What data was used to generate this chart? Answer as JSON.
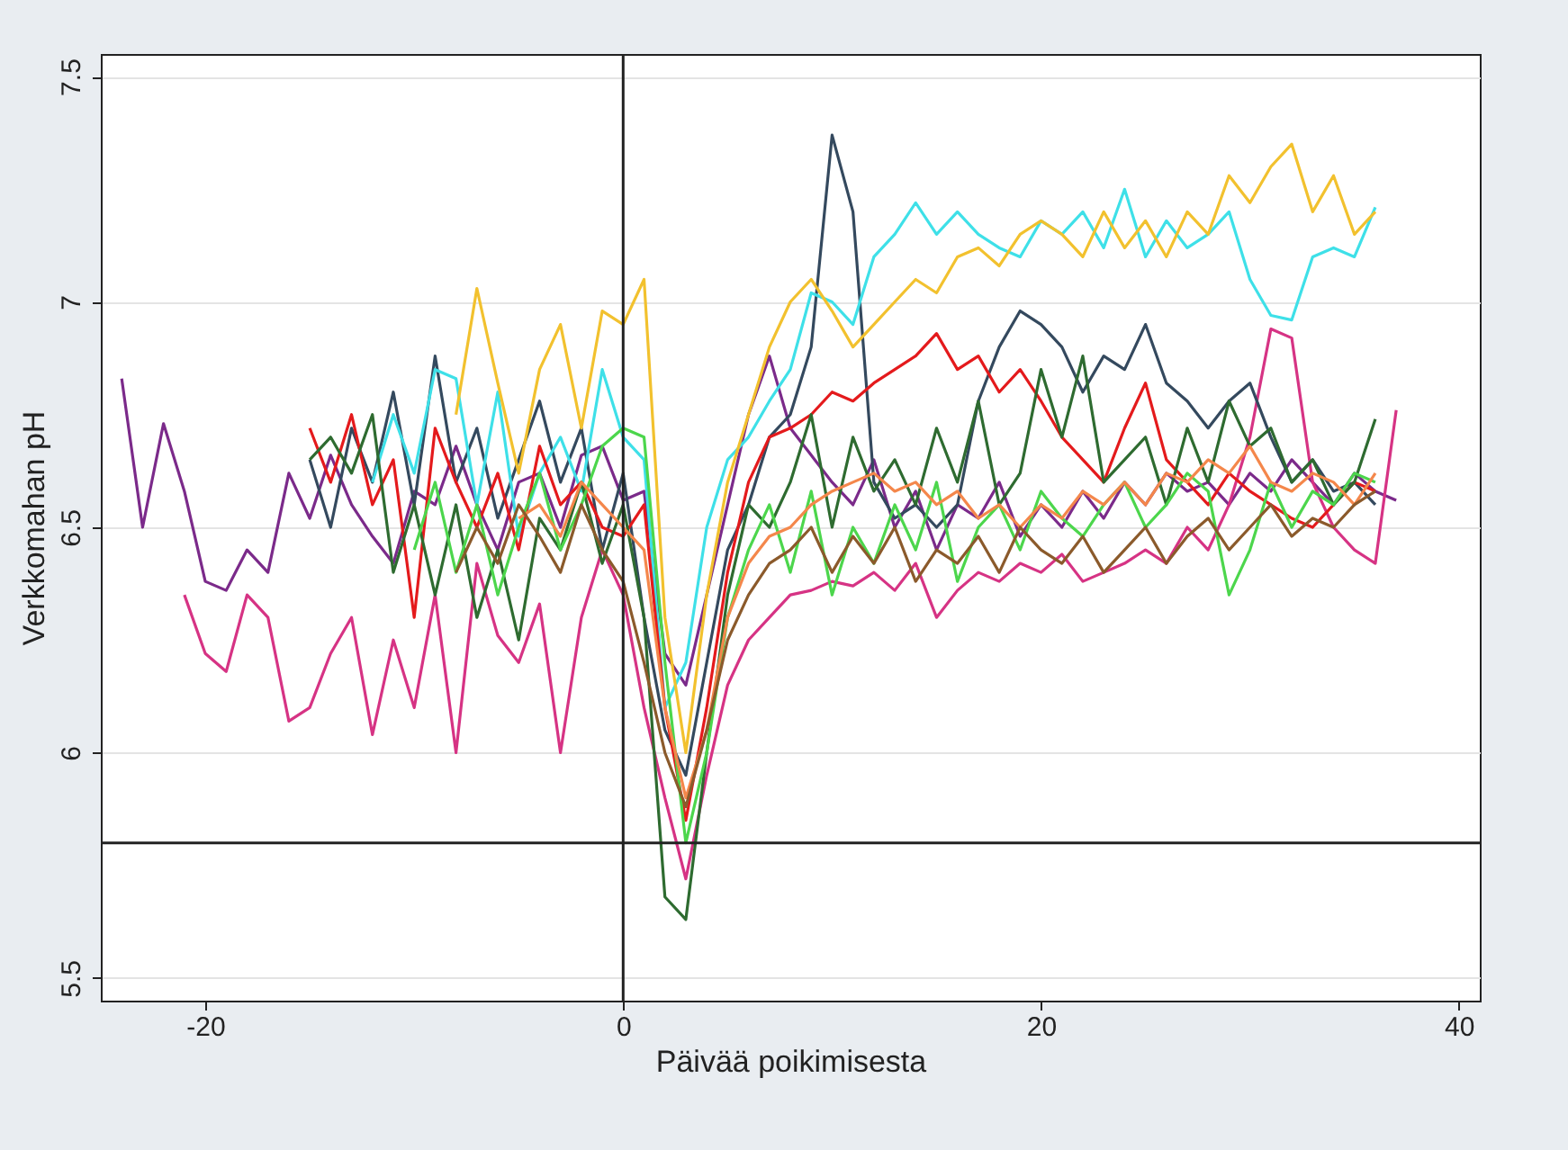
{
  "chart_data": {
    "type": "line",
    "xlabel": "Päivää poikimisesta",
    "ylabel": "Verkkomahan pH",
    "x": [
      -24,
      -23,
      -22,
      -21,
      -20,
      -19,
      -18,
      -17,
      -16,
      -15,
      -14,
      -13,
      -12,
      -11,
      -10,
      -9,
      -8,
      -7,
      -6,
      -5,
      -4,
      -3,
      -2,
      -1,
      0,
      1,
      2,
      3,
      4,
      5,
      6,
      7,
      8,
      9,
      10,
      11,
      12,
      13,
      14,
      15,
      16,
      17,
      18,
      19,
      20,
      21,
      22,
      23,
      24,
      25,
      26,
      27,
      28,
      29,
      30,
      31,
      32,
      33,
      34,
      35,
      36,
      37
    ],
    "xlim": [
      -25,
      41
    ],
    "xticks": [
      -20,
      0,
      20,
      40
    ],
    "ylim": [
      5.45,
      7.55
    ],
    "yticks": [
      5.5,
      6,
      6.5,
      7,
      7.5
    ],
    "grid": "y",
    "line_style": "solid",
    "ref_lines": [
      {
        "axis": "x",
        "value": 0,
        "color": "#222222"
      },
      {
        "axis": "y",
        "value": 5.8,
        "color": "#222222"
      }
    ],
    "series": [
      {
        "color": "#7b2a8a",
        "values": [
          6.83,
          6.5,
          6.73,
          6.58,
          6.38,
          6.36,
          6.45,
          6.4,
          6.62,
          6.52,
          6.66,
          6.55,
          6.48,
          6.42,
          6.58,
          6.55,
          6.68,
          6.55,
          6.45,
          6.6,
          6.62,
          6.5,
          6.66,
          6.68,
          6.56,
          6.58,
          6.22,
          6.15,
          6.35,
          6.55,
          6.75,
          6.88,
          6.72,
          6.66,
          6.6,
          6.55,
          6.65,
          6.5,
          6.58,
          6.45,
          6.55,
          6.52,
          6.6,
          6.48,
          6.55,
          6.5,
          6.58,
          6.52,
          6.6,
          6.55,
          6.62,
          6.58,
          6.6,
          6.55,
          6.62,
          6.58,
          6.65,
          6.6,
          6.55,
          6.62,
          6.58,
          6.56
        ]
      },
      {
        "color": "#d63384",
        "values": [
          null,
          null,
          null,
          6.35,
          6.22,
          6.18,
          6.35,
          6.3,
          6.07,
          6.1,
          6.22,
          6.3,
          6.04,
          6.25,
          6.1,
          6.35,
          6.0,
          6.42,
          6.26,
          6.2,
          6.33,
          6.0,
          6.3,
          6.45,
          6.35,
          6.1,
          5.9,
          5.72,
          5.95,
          6.15,
          6.25,
          6.3,
          6.35,
          6.36,
          6.38,
          6.37,
          6.4,
          6.36,
          6.42,
          6.3,
          6.36,
          6.4,
          6.38,
          6.42,
          6.4,
          6.44,
          6.38,
          6.4,
          6.42,
          6.45,
          6.42,
          6.5,
          6.45,
          6.55,
          6.7,
          6.94,
          6.92,
          6.6,
          6.5,
          6.45,
          6.42,
          6.76
        ]
      },
      {
        "color": "#34495e",
        "values": [
          null,
          null,
          null,
          null,
          null,
          null,
          null,
          null,
          null,
          6.65,
          6.5,
          6.72,
          6.6,
          6.8,
          6.55,
          6.88,
          6.6,
          6.72,
          6.52,
          6.65,
          6.78,
          6.6,
          6.72,
          6.45,
          6.62,
          6.3,
          6.05,
          5.95,
          6.2,
          6.45,
          6.55,
          6.7,
          6.75,
          6.9,
          7.37,
          7.2,
          6.6,
          6.52,
          6.55,
          6.5,
          6.55,
          6.78,
          6.9,
          6.98,
          6.95,
          6.9,
          6.8,
          6.88,
          6.85,
          6.95,
          6.82,
          6.78,
          6.72,
          6.78,
          6.82,
          6.7,
          6.6,
          6.65,
          6.58,
          6.6,
          6.55,
          null
        ]
      },
      {
        "color": "#3ee0e8",
        "values": [
          null,
          null,
          null,
          null,
          null,
          null,
          null,
          null,
          null,
          null,
          null,
          null,
          6.6,
          6.75,
          6.62,
          6.85,
          6.83,
          6.55,
          6.8,
          6.48,
          6.62,
          6.7,
          6.58,
          6.85,
          6.7,
          6.65,
          6.1,
          6.2,
          6.5,
          6.65,
          6.7,
          6.78,
          6.85,
          7.02,
          7.0,
          6.95,
          7.1,
          7.15,
          7.22,
          7.15,
          7.2,
          7.15,
          7.12,
          7.1,
          7.18,
          7.15,
          7.2,
          7.12,
          7.25,
          7.1,
          7.18,
          7.12,
          7.15,
          7.2,
          7.05,
          6.97,
          6.96,
          7.1,
          7.12,
          7.1,
          7.21,
          null
        ]
      },
      {
        "color": "#f2c12e",
        "values": [
          null,
          null,
          null,
          null,
          null,
          null,
          null,
          null,
          null,
          null,
          null,
          null,
          null,
          null,
          null,
          null,
          6.75,
          7.03,
          6.82,
          6.62,
          6.85,
          6.95,
          6.72,
          6.98,
          6.95,
          7.05,
          6.3,
          6.0,
          6.35,
          6.6,
          6.75,
          6.9,
          7.0,
          7.05,
          6.98,
          6.9,
          6.95,
          7.0,
          7.05,
          7.02,
          7.1,
          7.12,
          7.08,
          7.15,
          7.18,
          7.15,
          7.1,
          7.2,
          7.12,
          7.18,
          7.1,
          7.2,
          7.15,
          7.28,
          7.22,
          7.3,
          7.35,
          7.2,
          7.28,
          7.15,
          7.2,
          null
        ]
      },
      {
        "color": "#e41a1c",
        "values": [
          null,
          null,
          null,
          null,
          null,
          null,
          null,
          null,
          null,
          6.72,
          6.6,
          6.75,
          6.55,
          6.65,
          6.3,
          6.72,
          6.6,
          6.5,
          6.62,
          6.45,
          6.68,
          6.55,
          6.6,
          6.5,
          6.48,
          6.55,
          6.1,
          5.85,
          6.1,
          6.4,
          6.6,
          6.7,
          6.72,
          6.75,
          6.8,
          6.78,
          6.82,
          6.85,
          6.88,
          6.93,
          6.85,
          6.88,
          6.8,
          6.85,
          6.78,
          6.7,
          6.65,
          6.6,
          6.72,
          6.82,
          6.65,
          6.6,
          6.55,
          6.62,
          6.58,
          6.55,
          6.52,
          6.5,
          6.55,
          6.6,
          6.58,
          null
        ]
      },
      {
        "color": "#2e6b30",
        "values": [
          null,
          null,
          null,
          null,
          null,
          null,
          null,
          null,
          null,
          6.65,
          6.7,
          6.62,
          6.75,
          6.4,
          6.55,
          6.35,
          6.55,
          6.3,
          6.45,
          6.25,
          6.52,
          6.45,
          6.6,
          6.42,
          6.55,
          6.3,
          5.68,
          5.63,
          6.0,
          6.35,
          6.55,
          6.5,
          6.6,
          6.75,
          6.5,
          6.7,
          6.58,
          6.65,
          6.55,
          6.72,
          6.6,
          6.78,
          6.55,
          6.62,
          6.85,
          6.7,
          6.88,
          6.6,
          6.65,
          6.7,
          6.55,
          6.72,
          6.6,
          6.78,
          6.68,
          6.72,
          6.6,
          6.65,
          6.55,
          6.6,
          6.74,
          null
        ]
      },
      {
        "color": "#4cd64c",
        "values": [
          null,
          null,
          null,
          null,
          null,
          null,
          null,
          null,
          null,
          null,
          null,
          null,
          null,
          null,
          6.45,
          6.6,
          6.4,
          6.55,
          6.35,
          6.5,
          6.62,
          6.45,
          6.55,
          6.68,
          6.72,
          6.7,
          6.2,
          5.8,
          6.0,
          6.3,
          6.45,
          6.55,
          6.4,
          6.58,
          6.35,
          6.5,
          6.42,
          6.55,
          6.45,
          6.6,
          6.38,
          6.5,
          6.55,
          6.45,
          6.58,
          6.52,
          6.48,
          6.55,
          6.6,
          6.5,
          6.55,
          6.62,
          6.58,
          6.35,
          6.45,
          6.6,
          6.5,
          6.58,
          6.55,
          6.62,
          6.6,
          null
        ]
      },
      {
        "color": "#f4874b",
        "values": [
          null,
          null,
          null,
          null,
          null,
          null,
          null,
          null,
          null,
          null,
          null,
          null,
          null,
          null,
          null,
          null,
          null,
          null,
          null,
          6.52,
          6.55,
          6.48,
          6.6,
          6.55,
          6.5,
          6.45,
          6.1,
          5.9,
          6.05,
          6.3,
          6.42,
          6.48,
          6.5,
          6.55,
          6.58,
          6.6,
          6.62,
          6.58,
          6.6,
          6.55,
          6.58,
          6.52,
          6.55,
          6.5,
          6.55,
          6.52,
          6.58,
          6.55,
          6.6,
          6.55,
          6.62,
          6.6,
          6.65,
          6.62,
          6.68,
          6.6,
          6.58,
          6.62,
          6.6,
          6.55,
          6.62,
          null
        ]
      },
      {
        "color": "#8b5a2b",
        "values": [
          null,
          null,
          null,
          null,
          null,
          null,
          null,
          null,
          null,
          null,
          null,
          null,
          null,
          null,
          null,
          null,
          6.4,
          6.5,
          6.42,
          6.55,
          6.48,
          6.4,
          6.55,
          6.45,
          6.38,
          6.2,
          6.0,
          5.88,
          6.05,
          6.25,
          6.35,
          6.42,
          6.45,
          6.5,
          6.4,
          6.48,
          6.42,
          6.5,
          6.38,
          6.45,
          6.42,
          6.48,
          6.4,
          6.5,
          6.45,
          6.42,
          6.48,
          6.4,
          6.45,
          6.5,
          6.42,
          6.48,
          6.52,
          6.45,
          6.5,
          6.55,
          6.48,
          6.52,
          6.5,
          6.55,
          6.58,
          null
        ]
      }
    ]
  }
}
